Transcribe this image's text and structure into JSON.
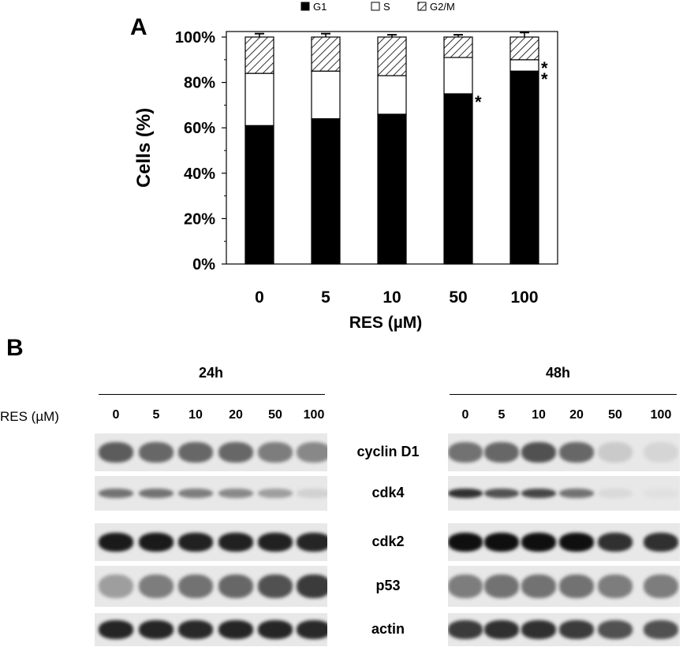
{
  "panelA": {
    "letter": "A",
    "chart_data": {
      "type": "bar",
      "stacked": true,
      "categories": [
        "0",
        "5",
        "10",
        "50",
        "100"
      ],
      "series": [
        {
          "name": "G1",
          "color": "#000000",
          "values": [
            61,
            64,
            66,
            75,
            85
          ],
          "errors": [
            2,
            1.5,
            1.5,
            3,
            1.5
          ]
        },
        {
          "name": "S",
          "color": "#ffffff",
          "values": [
            23,
            21,
            17,
            16,
            5
          ],
          "errors": [
            2,
            2,
            1.5,
            2,
            1.5
          ]
        },
        {
          "name": "G2/M",
          "color": "hatched",
          "values": [
            16,
            15,
            17,
            9,
            10
          ],
          "errors": [
            1.5,
            1.5,
            1,
            1,
            2
          ]
        }
      ],
      "significance": [
        {
          "category": "50",
          "series": "G1",
          "marker": "*"
        },
        {
          "category": "100",
          "series": "G1",
          "marker": "*"
        },
        {
          "category": "100",
          "series": "S",
          "marker": "*"
        }
      ],
      "xlabel": "RES (µM)",
      "ylabel": "Cells (%)",
      "ylim": [
        0,
        100
      ],
      "yticks": [
        "0%",
        "20%",
        "40%",
        "60%",
        "80%",
        "100%"
      ],
      "legend_position": "top",
      "grid": false
    }
  },
  "panelB": {
    "letter": "B",
    "row_label": "RES (µM)",
    "left": {
      "title": "24h",
      "lanes": [
        "0",
        "5",
        "10",
        "20",
        "50",
        "100"
      ],
      "intensity": {
        "cyclin D1": [
          0.65,
          0.6,
          0.6,
          0.6,
          0.5,
          0.45
        ],
        "cdk4": [
          0.55,
          0.55,
          0.5,
          0.45,
          0.35,
          0.12
        ],
        "cdk2": [
          0.95,
          0.95,
          0.92,
          0.92,
          0.92,
          0.9
        ],
        "p53": [
          0.35,
          0.5,
          0.55,
          0.6,
          0.7,
          0.8
        ],
        "actin": [
          0.9,
          0.9,
          0.88,
          0.9,
          0.9,
          0.88
        ]
      }
    },
    "right": {
      "title": "48h",
      "lanes": [
        "0",
        "5",
        "10",
        "20",
        "50",
        "100"
      ],
      "intensity": {
        "cyclin D1": [
          0.55,
          0.6,
          0.7,
          0.6,
          0.15,
          0.1
        ],
        "cdk4": [
          0.85,
          0.7,
          0.75,
          0.55,
          0.08,
          0.05
        ],
        "cdk2": [
          1.0,
          1.0,
          1.0,
          1.0,
          0.85,
          0.85
        ],
        "p53": [
          0.5,
          0.55,
          0.55,
          0.55,
          0.5,
          0.5
        ],
        "actin": [
          0.8,
          0.85,
          0.85,
          0.8,
          0.7,
          0.7
        ]
      }
    },
    "proteins": [
      "cyclin D1",
      "cdk4",
      "cdk2",
      "p53",
      "actin"
    ]
  }
}
